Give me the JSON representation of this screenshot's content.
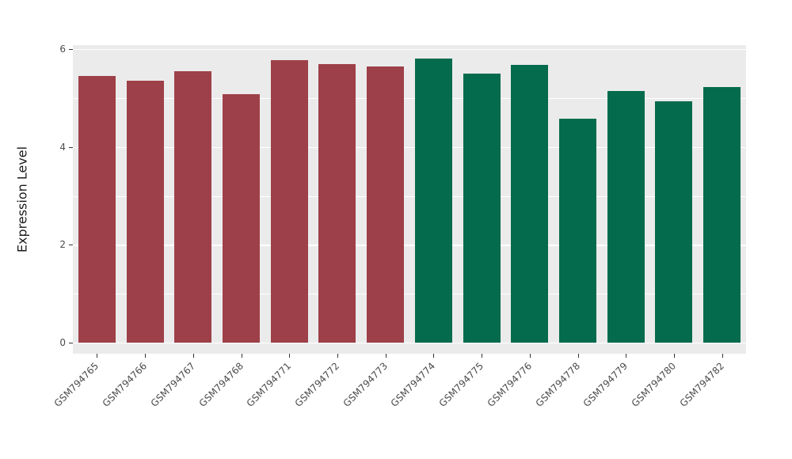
{
  "chart_data": {
    "type": "bar",
    "title": "",
    "xlabel": "",
    "ylabel": "Expression Level",
    "categories": [
      "GSM794765",
      "GSM794766",
      "GSM794767",
      "GSM794768",
      "GSM794771",
      "GSM794772",
      "GSM794773",
      "GSM794774",
      "GSM794775",
      "GSM794776",
      "GSM794778",
      "GSM794779",
      "GSM794780",
      "GSM794782"
    ],
    "values": [
      5.45,
      5.35,
      5.55,
      5.08,
      5.78,
      5.7,
      5.65,
      5.8,
      5.5,
      5.68,
      4.58,
      5.15,
      4.93,
      5.22
    ],
    "bar_colors": [
      "#9E4049",
      "#9E4049",
      "#9E4049",
      "#9E4049",
      "#9E4049",
      "#9E4049",
      "#9E4049",
      "#046B4C",
      "#046B4C",
      "#046B4C",
      "#046B4C",
      "#046B4C",
      "#046B4C",
      "#046B4C"
    ],
    "group_colors": {
      "group1": "#9E4049",
      "group2": "#046B4C"
    },
    "ylim": [
      0,
      6
    ],
    "yticks": [
      0,
      2,
      4,
      6
    ],
    "minor_gridlines": [
      1,
      3,
      5
    ],
    "grid": "on",
    "legend": "none",
    "panel_bg": "#EBEBEB",
    "grid_color": "#FFFFFF"
  }
}
